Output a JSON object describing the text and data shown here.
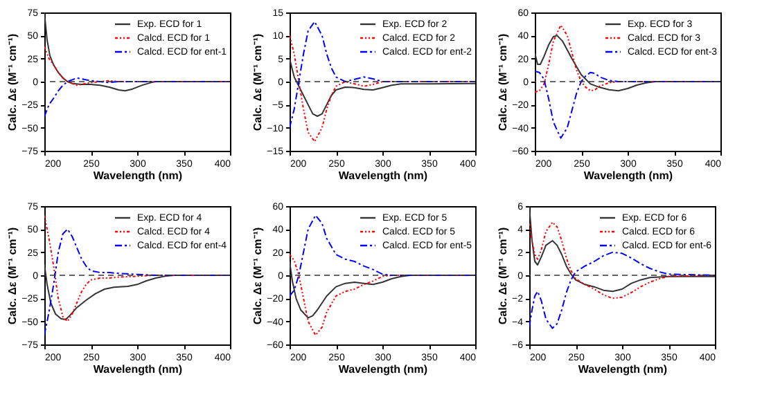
{
  "chart_data": [
    {
      "type": "line",
      "xlabel": "Wavelength (nm)",
      "ylabel": "Calc. Δε (M⁻¹ cm⁻¹)",
      "xlim": [
        200,
        400
      ],
      "xticks": [
        200,
        250,
        300,
        350,
        400
      ],
      "ylim": [
        -75,
        75
      ],
      "yticks": [
        -75,
        -50,
        -25,
        0,
        25,
        50,
        75
      ],
      "legend": "top right",
      "ref_lines": [
        {
          "axis": "y",
          "value": 0,
          "color": "#333333",
          "line_style": "dashed"
        }
      ],
      "series": [
        {
          "name": "Exp. ECD for 1",
          "color": "#333333",
          "line_style": "solid",
          "x": [
            200,
            203,
            206,
            210,
            215,
            220,
            225,
            230,
            240,
            250,
            260,
            270,
            280,
            287,
            295,
            305,
            315,
            320,
            400
          ],
          "values": [
            75,
            45,
            28,
            18,
            10,
            4,
            0,
            -2,
            -3,
            -3,
            -4,
            -6,
            -9,
            -10,
            -8,
            -4,
            -1,
            0,
            0
          ]
        },
        {
          "name": "Calcd. ECD for 1",
          "color": "#ff0000",
          "line_style": "dotted",
          "x": [
            200,
            205,
            210,
            215,
            220,
            225,
            230,
            235,
            240,
            250,
            260,
            270,
            280,
            290,
            300,
            400
          ],
          "values": [
            38,
            25,
            18,
            10,
            4,
            0,
            -2,
            -4,
            -3,
            -1,
            0,
            1,
            0,
            0,
            0,
            0
          ]
        },
        {
          "name": "Calcd. ECD for ent-1",
          "color": "#0000ff",
          "line_style": "dashed",
          "x": [
            200,
            205,
            210,
            215,
            220,
            225,
            230,
            235,
            240,
            250,
            260,
            270,
            280,
            290,
            300,
            400
          ],
          "values": [
            -38,
            -25,
            -18,
            -10,
            -4,
            0,
            2,
            4,
            3,
            1,
            0,
            -1,
            0,
            0,
            0,
            0
          ]
        }
      ]
    },
    {
      "type": "line",
      "xlabel": "Wavelength (nm)",
      "ylabel": "Calc. Δε (M⁻¹ cm⁻¹)",
      "xlim": [
        200,
        400
      ],
      "xticks": [
        200,
        250,
        300,
        350,
        400
      ],
      "ylim": [
        -15,
        15
      ],
      "yticks": [
        -15,
        -10,
        -5,
        0,
        5,
        10,
        15
      ],
      "legend": "top right",
      "ref_lines": [
        {
          "axis": "y",
          "value": 0,
          "color": "#333333",
          "line_style": "dashed"
        }
      ],
      "series": [
        {
          "name": "Exp. ECD for 2",
          "color": "#333333",
          "line_style": "solid",
          "x": [
            200,
            205,
            210,
            215,
            220,
            225,
            230,
            235,
            240,
            245,
            250,
            260,
            270,
            280,
            290,
            300,
            310,
            320,
            350,
            400
          ],
          "values": [
            5,
            1,
            -1,
            -3,
            -5,
            -7,
            -7.5,
            -7,
            -5,
            -3,
            -1.8,
            -1.2,
            -1.3,
            -1.7,
            -1.8,
            -1.3,
            -0.8,
            -0.5,
            -0.5,
            -0.4
          ]
        },
        {
          "name": "Calcd. ECD for 2",
          "color": "#ff0000",
          "line_style": "dotted",
          "x": [
            200,
            205,
            210,
            215,
            220,
            227,
            235,
            240,
            245,
            250,
            260,
            270,
            280,
            290,
            300,
            320,
            400
          ],
          "values": [
            10,
            6,
            0,
            -6,
            -11,
            -13,
            -10,
            -6,
            -3,
            -1,
            0,
            -0.5,
            -1,
            -0.6,
            0,
            0,
            0
          ]
        },
        {
          "name": "Calcd. ECD for ent-2",
          "color": "#0000ff",
          "line_style": "dashed",
          "x": [
            200,
            205,
            210,
            215,
            220,
            227,
            235,
            240,
            245,
            250,
            260,
            270,
            280,
            290,
            300,
            320,
            400
          ],
          "values": [
            -10,
            -6,
            0,
            6,
            11,
            13,
            10,
            6,
            3,
            1,
            0,
            0.5,
            1,
            0.6,
            0,
            0,
            0
          ]
        }
      ]
    },
    {
      "type": "line",
      "xlabel": "Wavelength (nm)",
      "ylabel": "Calc. Δε (M⁻¹ cm⁻¹)",
      "xlim": [
        200,
        400
      ],
      "xticks": [
        200,
        250,
        300,
        350,
        400
      ],
      "ylim": [
        -60,
        60
      ],
      "yticks": [
        -60,
        -40,
        -20,
        0,
        20,
        40,
        60
      ],
      "legend": "top right",
      "ref_lines": [
        {
          "axis": "y",
          "value": 0,
          "color": "#333333",
          "line_style": "dashed"
        }
      ],
      "series": [
        {
          "name": "Exp. ECD for 3",
          "color": "#333333",
          "line_style": "solid",
          "x": [
            200,
            203,
            206,
            210,
            215,
            220,
            224,
            230,
            240,
            250,
            260,
            270,
            280,
            290,
            300,
            310,
            320,
            330,
            400
          ],
          "values": [
            25,
            15,
            15,
            22,
            32,
            39,
            40,
            35,
            20,
            6,
            -2,
            -5,
            -7,
            -8,
            -6,
            -3,
            -1,
            0,
            0
          ]
        },
        {
          "name": "Calcd. ECD for 3",
          "color": "#ff0000",
          "line_style": "dotted",
          "x": [
            200,
            205,
            210,
            215,
            220,
            228,
            235,
            240,
            245,
            250,
            255,
            260,
            265,
            270,
            280,
            290,
            400
          ],
          "values": [
            -9,
            -8,
            -2,
            15,
            35,
            49,
            40,
            25,
            10,
            0,
            -5,
            -8,
            -7,
            -4,
            -1,
            0,
            0
          ]
        },
        {
          "name": "Calcd. ECD for ent-3",
          "color": "#0000ff",
          "line_style": "dashed",
          "x": [
            200,
            205,
            210,
            215,
            220,
            228,
            235,
            240,
            245,
            250,
            255,
            260,
            265,
            270,
            280,
            290,
            400
          ],
          "values": [
            9,
            8,
            2,
            -15,
            -35,
            -49,
            -40,
            -25,
            -10,
            0,
            5,
            8,
            7,
            4,
            1,
            0,
            0
          ]
        }
      ]
    },
    {
      "type": "line",
      "xlabel": "Wavelength (nm)",
      "ylabel": "Calc. Δε (M⁻¹ cm⁻¹)",
      "xlim": [
        200,
        400
      ],
      "xticks": [
        200,
        250,
        300,
        350,
        400
      ],
      "ylim": [
        -75,
        75
      ],
      "yticks": [
        -75,
        -50,
        -25,
        0,
        25,
        50,
        75
      ],
      "legend": "top right",
      "ref_lines": [
        {
          "axis": "y",
          "value": 0,
          "color": "#333333",
          "line_style": "dashed"
        }
      ],
      "series": [
        {
          "name": "Exp. ECD for 4",
          "color": "#333333",
          "line_style": "solid",
          "x": [
            200,
            203,
            207,
            212,
            218,
            223,
            228,
            235,
            245,
            255,
            265,
            275,
            290,
            300,
            310,
            320,
            330,
            340,
            400
          ],
          "values": [
            12,
            -10,
            -30,
            -42,
            -47,
            -48,
            -43,
            -35,
            -27,
            -20,
            -15,
            -13,
            -12,
            -10,
            -6,
            -3,
            -1,
            0,
            0
          ]
        },
        {
          "name": "Calcd. ECD for 4",
          "color": "#ff0000",
          "line_style": "dotted",
          "x": [
            200,
            205,
            210,
            215,
            220,
            225,
            230,
            235,
            240,
            245,
            250,
            260,
            270,
            280,
            300,
            320,
            400
          ],
          "values": [
            65,
            40,
            10,
            -25,
            -45,
            -50,
            -42,
            -30,
            -18,
            -10,
            -5,
            -3,
            -3,
            -2,
            -1,
            0,
            0
          ]
        },
        {
          "name": "Calcd. ECD for ent-4",
          "color": "#0000ff",
          "line_style": "dashed",
          "x": [
            200,
            205,
            210,
            215,
            220,
            225,
            230,
            235,
            240,
            245,
            250,
            260,
            270,
            280,
            300,
            320,
            400
          ],
          "values": [
            -65,
            -40,
            -10,
            25,
            45,
            50,
            42,
            30,
            18,
            10,
            5,
            3,
            3,
            2,
            1,
            0,
            0
          ]
        }
      ]
    },
    {
      "type": "line",
      "xlabel": "Wavelength (nm)",
      "ylabel": "Calc. Δε (M⁻¹ cm⁻¹)",
      "xlim": [
        200,
        400
      ],
      "xticks": [
        200,
        250,
        300,
        350,
        400
      ],
      "ylim": [
        -60,
        60
      ],
      "yticks": [
        -60,
        -40,
        -20,
        0,
        20,
        40,
        60
      ],
      "legend": "top right",
      "ref_lines": [
        {
          "axis": "y",
          "value": 0,
          "color": "#333333",
          "line_style": "dashed"
        }
      ],
      "series": [
        {
          "name": "Exp. ECD for 5",
          "color": "#333333",
          "line_style": "solid",
          "x": [
            200,
            203,
            207,
            212,
            220,
            225,
            230,
            240,
            250,
            260,
            270,
            280,
            290,
            300,
            310,
            320,
            330,
            400
          ],
          "values": [
            12,
            -5,
            -20,
            -30,
            -37,
            -35,
            -30,
            -18,
            -10,
            -7,
            -6,
            -7,
            -8,
            -6,
            -3,
            -1,
            0,
            0
          ]
        },
        {
          "name": "Calcd. ECD for 5",
          "color": "#ff0000",
          "line_style": "dotted",
          "x": [
            200,
            205,
            210,
            215,
            220,
            228,
            235,
            240,
            250,
            260,
            270,
            280,
            290,
            300,
            310,
            400
          ],
          "values": [
            18,
            13,
            0,
            -20,
            -40,
            -52,
            -45,
            -32,
            -18,
            -14,
            -12,
            -8,
            -5,
            -1,
            0,
            0
          ]
        },
        {
          "name": "Calcd. ECD for ent-5",
          "color": "#0000ff",
          "line_style": "dashed",
          "x": [
            200,
            205,
            210,
            215,
            220,
            228,
            235,
            240,
            250,
            260,
            270,
            280,
            290,
            300,
            310,
            400
          ],
          "values": [
            -18,
            -13,
            0,
            20,
            40,
            52,
            45,
            32,
            18,
            14,
            12,
            8,
            5,
            1,
            0,
            0
          ]
        }
      ]
    },
    {
      "type": "line",
      "xlabel": "Wavelength (nm)",
      "ylabel": "Calc. Δε (M⁻¹ cm⁻¹)",
      "xlim": [
        200,
        400
      ],
      "xticks": [
        200,
        250,
        300,
        350,
        400
      ],
      "ylim": [
        -6,
        6
      ],
      "yticks": [
        -6,
        -4,
        -2,
        0,
        2,
        4,
        6
      ],
      "legend": "top right",
      "ref_lines": [
        {
          "axis": "y",
          "value": 0,
          "color": "#333333",
          "line_style": "dashed"
        }
      ],
      "series": [
        {
          "name": "Exp. ECD for 6",
          "color": "#333333",
          "line_style": "solid",
          "x": [
            200,
            203,
            206,
            209,
            213,
            218,
            225,
            230,
            235,
            240,
            245,
            250,
            260,
            270,
            280,
            290,
            300,
            310,
            320,
            330,
            350,
            400
          ],
          "values": [
            6,
            3,
            1.2,
            0.9,
            1.6,
            2.6,
            3,
            2.6,
            1.8,
            0.8,
            0.1,
            -0.4,
            -0.8,
            -1,
            -1.3,
            -1.4,
            -1.2,
            -0.7,
            -0.4,
            -0.2,
            -0.1,
            -0.1
          ]
        },
        {
          "name": "Calcd. ECD for 6",
          "color": "#ff0000",
          "line_style": "dotted",
          "x": [
            200,
            203,
            206,
            209,
            213,
            218,
            225,
            230,
            235,
            240,
            245,
            250,
            260,
            270,
            280,
            290,
            300,
            310,
            320,
            330,
            340,
            350,
            400
          ],
          "values": [
            4.5,
            3,
            1.8,
            1.4,
            2.2,
            3.8,
            4.6,
            4.2,
            3,
            1.5,
            0.4,
            -0.3,
            -0.8,
            -1.2,
            -1.7,
            -2,
            -1.9,
            -1.5,
            -1,
            -0.6,
            -0.3,
            -0.1,
            0
          ]
        },
        {
          "name": "Calcd. ECD for ent-6",
          "color": "#0000ff",
          "line_style": "dashed",
          "x": [
            200,
            203,
            206,
            209,
            213,
            218,
            225,
            230,
            235,
            240,
            245,
            250,
            260,
            270,
            280,
            290,
            300,
            310,
            320,
            330,
            340,
            350,
            400
          ],
          "values": [
            -4.5,
            -3,
            -1.8,
            -1.4,
            -2.2,
            -3.8,
            -4.6,
            -4.2,
            -3,
            -1.5,
            -0.4,
            0.3,
            0.8,
            1.2,
            1.7,
            2,
            1.9,
            1.5,
            1,
            0.6,
            0.3,
            0.1,
            0
          ]
        }
      ]
    }
  ]
}
